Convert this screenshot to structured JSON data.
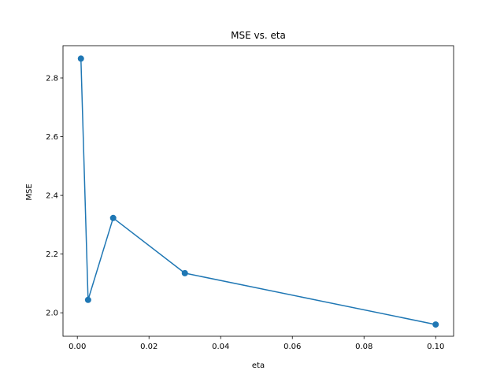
{
  "chart_data": {
    "type": "line",
    "title": "MSE vs. eta",
    "xlabel": "eta",
    "ylabel": "MSE",
    "xlim": [
      -0.004,
      0.105
    ],
    "ylim": [
      1.92,
      2.91
    ],
    "xticks": [
      0.0,
      0.02,
      0.04,
      0.06,
      0.08,
      0.1
    ],
    "xtick_labels": [
      "0.00",
      "0.02",
      "0.04",
      "0.06",
      "0.08",
      "0.10"
    ],
    "yticks": [
      2.0,
      2.2,
      2.4,
      2.6,
      2.8
    ],
    "ytick_labels": [
      "2.0",
      "2.2",
      "2.4",
      "2.6",
      "2.8"
    ],
    "grid": false,
    "series": [
      {
        "name": "MSE",
        "color": "#1f77b4",
        "marker": "circle",
        "x": [
          0.001,
          0.003,
          0.01,
          0.03,
          0.1
        ],
        "y": [
          2.866,
          2.044,
          2.323,
          2.135,
          1.96
        ]
      }
    ]
  }
}
